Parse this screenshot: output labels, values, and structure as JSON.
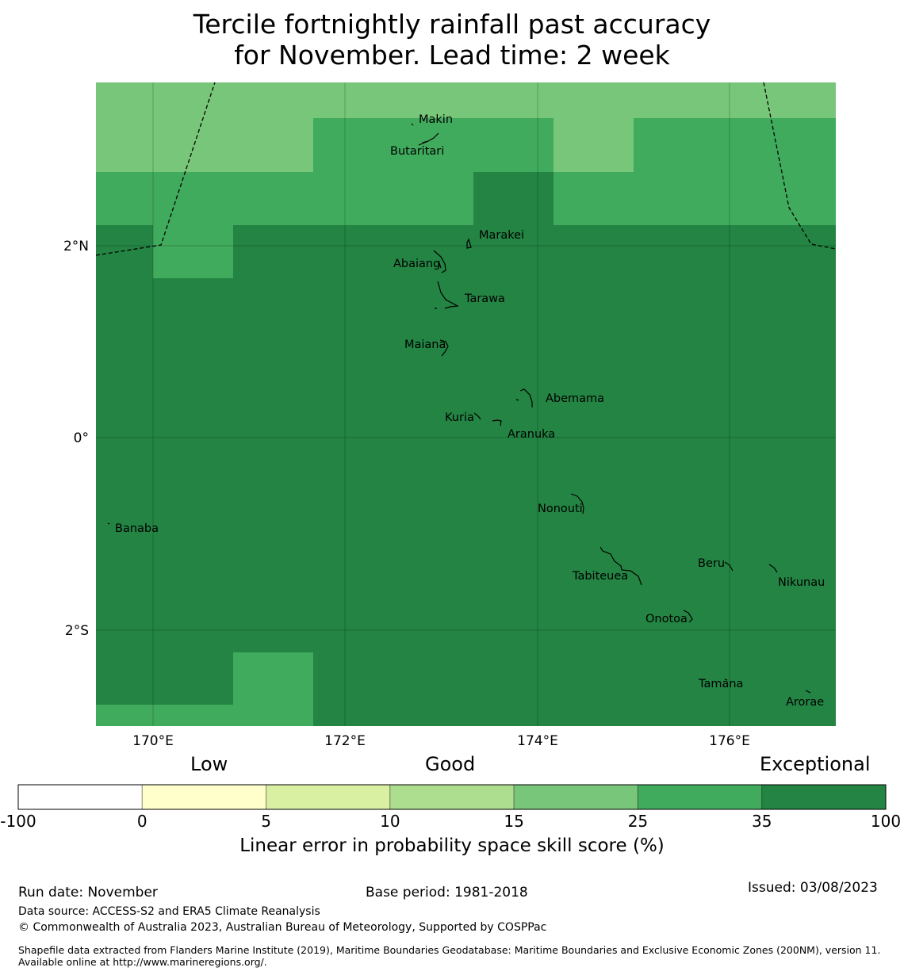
{
  "title": {
    "line1": "Tercile fortnightly rainfall past accuracy",
    "line2": "for November. Lead time: 2 week"
  },
  "map": {
    "lat_labels": [
      "2°N",
      "0°",
      "2°S"
    ],
    "lon_labels": [
      "170°E",
      "172°E",
      "174°E",
      "176°E"
    ],
    "islands": [
      "Makin",
      "Butaritari",
      "Marakei",
      "Abaiang",
      "Tarawa",
      "Maiana",
      "Abemama",
      "Kuria",
      "Aranuka",
      "Nonouti",
      "Banaba",
      "Beru",
      "Tabiteuea",
      "Nikunau",
      "Onotoa",
      "Tamana",
      "Arorae"
    ]
  },
  "legend": {
    "category_labels": {
      "low": "Low",
      "good": "Good",
      "exceptional": "Exceptional"
    },
    "bins": [
      {
        "from": "-100",
        "to": "0",
        "color": "#ffffff"
      },
      {
        "from": "0",
        "to": "5",
        "color": "#ffffcc"
      },
      {
        "from": "5",
        "to": "10",
        "color": "#d9f0a3"
      },
      {
        "from": "10",
        "to": "15",
        "color": "#addd8e"
      },
      {
        "from": "15",
        "to": "25",
        "color": "#78c679"
      },
      {
        "from": "25",
        "to": "35",
        "color": "#41ab5d"
      },
      {
        "from": "35",
        "to": "100",
        "color": "#238443"
      }
    ],
    "ticks": [
      "-100",
      "0",
      "5",
      "10",
      "15",
      "25",
      "35",
      "100"
    ],
    "axis_label": "Linear error in probability space skill score (%)"
  },
  "footer": {
    "run_date": "Run date: November",
    "base_period": "Base period: 1981-2018",
    "issued": "Issued: 03/08/2023",
    "data_source": "Data source: ACCESS-S2 and ERA5 Climate Reanalysis",
    "copyright": "© Commonwealth of Australia 2023, Australian Bureau of Meteorology, Supported by COSPPac",
    "shapefile": "Shapefile data extracted from Flanders Marine Institute (2019), Maritime Boundaries Geodatabase: Maritime Boundaries and Exclusive Economic Zones (200NM), version 11. Available online at http://www.marineregions.org/."
  }
}
